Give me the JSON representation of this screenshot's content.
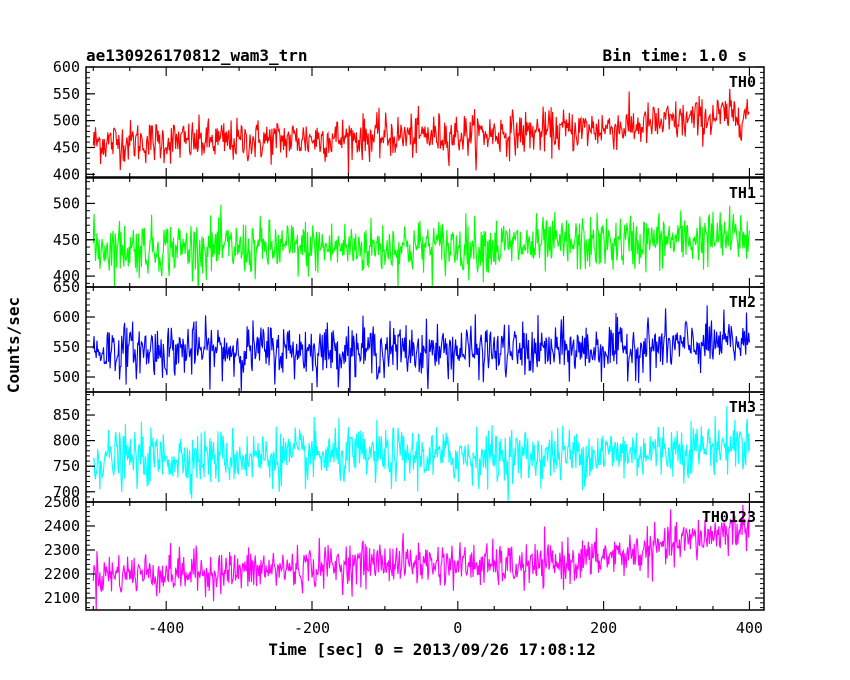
{
  "chart_data": {
    "type": "line",
    "title": "ae130926170812_wam3_trn",
    "bin_time": "Bin time: 1.0 s",
    "xlabel": "Time [sec] 0 = 2013/09/26 17:08:12",
    "ylabel": "Counts/sec",
    "xlim": [
      -510,
      420
    ],
    "xticks": [
      -400,
      -200,
      0,
      200,
      400
    ],
    "x_start": -500,
    "x_end": 400,
    "bin_seconds": 1.0,
    "panels": [
      {
        "name": "TH0",
        "color": "#ff0000",
        "ylim": [
          395,
          600
        ],
        "yticks": [
          400,
          450,
          500,
          550,
          600
        ],
        "trend": [
          [
            -500,
            460
          ],
          [
            -300,
            462
          ],
          [
            -100,
            470
          ],
          [
            100,
            478
          ],
          [
            250,
            490
          ],
          [
            400,
            515
          ]
        ],
        "noise_sd": 20
      },
      {
        "name": "TH1",
        "color": "#00ff00",
        "ylim": [
          385,
          535
        ],
        "yticks": [
          400,
          450,
          500
        ],
        "trend": [
          [
            -500,
            440
          ],
          [
            -300,
            438
          ],
          [
            -100,
            440
          ],
          [
            100,
            442
          ],
          [
            250,
            447
          ],
          [
            400,
            455
          ]
        ],
        "noise_sd": 19
      },
      {
        "name": "TH2",
        "color": "#0000ff",
        "ylim": [
          475,
          650
        ],
        "yticks": [
          500,
          550,
          600,
          650
        ],
        "trend": [
          [
            -500,
            545
          ],
          [
            -300,
            545
          ],
          [
            -100,
            545
          ],
          [
            100,
            543
          ],
          [
            250,
            548
          ],
          [
            400,
            558
          ]
        ],
        "noise_sd": 22
      },
      {
        "name": "TH3",
        "color": "#00ffff",
        "ylim": [
          680,
          895
        ],
        "yticks": [
          700,
          750,
          800,
          850
        ],
        "trend": [
          [
            -500,
            765
          ],
          [
            -300,
            768
          ],
          [
            -100,
            770
          ],
          [
            100,
            770
          ],
          [
            250,
            778
          ],
          [
            400,
            795
          ]
        ],
        "noise_sd": 27
      },
      {
        "name": "TH0123",
        "color": "#ff00ff",
        "ylim": [
          2050,
          2500
        ],
        "yticks": [
          2100,
          2200,
          2300,
          2400,
          2500
        ],
        "trend": [
          [
            -500,
            2200
          ],
          [
            -300,
            2210
          ],
          [
            -100,
            2250
          ],
          [
            100,
            2230
          ],
          [
            250,
            2290
          ],
          [
            400,
            2400
          ]
        ],
        "noise_sd": 45
      }
    ]
  }
}
